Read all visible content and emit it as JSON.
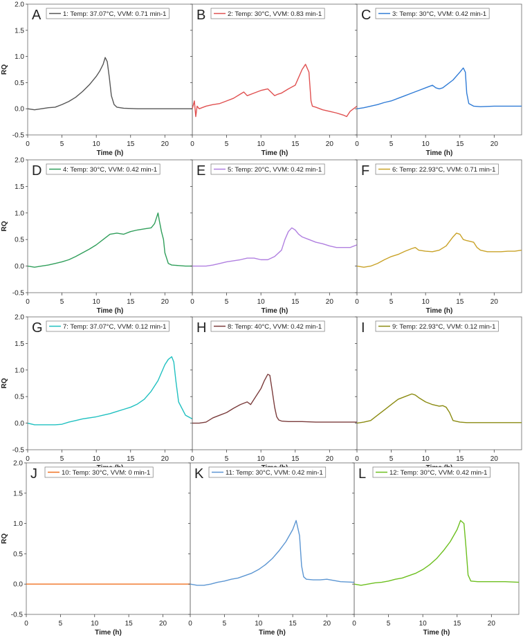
{
  "chart_data": [
    {
      "type": "line",
      "panel_letter": "A",
      "legend": "1: Temp: 37.07°C, VVM: 0.71 min-1",
      "color": "#555555",
      "xlabel": "Time (h)",
      "ylabel": "RQ",
      "xlim": [
        0,
        24
      ],
      "ylim": [
        -0.5,
        2.0
      ],
      "x": [
        0,
        1,
        2,
        3,
        4,
        5,
        6,
        7,
        8,
        9,
        10,
        10.5,
        11,
        11.3,
        11.6,
        11.9,
        12.2,
        12.6,
        13,
        14,
        16,
        18,
        20,
        22,
        24
      ],
      "y": [
        0,
        -0.02,
        0,
        0.02,
        0.03,
        0.08,
        0.14,
        0.22,
        0.33,
        0.46,
        0.62,
        0.72,
        0.85,
        0.98,
        0.9,
        0.6,
        0.25,
        0.08,
        0.03,
        0.01,
        0,
        0,
        0,
        0,
        0
      ]
    },
    {
      "type": "line",
      "panel_letter": "B",
      "legend": "2: Temp: 30°C, VVM: 0.83 min-1",
      "color": "#e05050",
      "xlabel": "Time (h)",
      "ylabel": "RQ",
      "xlim": [
        0,
        24
      ],
      "ylim": [
        -0.5,
        2.0
      ],
      "x": [
        0,
        0.3,
        0.5,
        0.7,
        1,
        2,
        3,
        4,
        5,
        6,
        7,
        7.5,
        8,
        9,
        10,
        11,
        12,
        12.5,
        13,
        14,
        15,
        16,
        16.5,
        17,
        17.3,
        17.5,
        18,
        19,
        20,
        21,
        22,
        22.5,
        23,
        24
      ],
      "y": [
        0,
        0.15,
        -0.15,
        0.05,
        0,
        0.05,
        0.08,
        0.1,
        0.15,
        0.2,
        0.28,
        0.32,
        0.25,
        0.3,
        0.35,
        0.38,
        0.25,
        0.28,
        0.3,
        0.38,
        0.45,
        0.75,
        0.85,
        0.7,
        0.15,
        0.05,
        0.03,
        -0.02,
        -0.05,
        -0.08,
        -0.12,
        -0.15,
        -0.05,
        0.05
      ]
    },
    {
      "type": "line",
      "panel_letter": "C",
      "legend": "3: Temp: 30°C, VVM: 0.42 min-1",
      "color": "#2f7bd6",
      "xlabel": "Time (h)",
      "ylabel": "RQ",
      "xlim": [
        0,
        24
      ],
      "ylim": [
        -0.5,
        2.0
      ],
      "x": [
        0,
        1,
        2,
        3,
        4,
        5,
        6,
        7,
        8,
        9,
        10,
        11,
        11.5,
        12,
        12.5,
        13,
        14,
        15,
        15.5,
        15.8,
        16,
        16.3,
        17,
        18,
        20,
        22,
        24
      ],
      "y": [
        0,
        0.02,
        0.05,
        0.08,
        0.12,
        0.15,
        0.2,
        0.25,
        0.3,
        0.35,
        0.4,
        0.45,
        0.4,
        0.38,
        0.4,
        0.45,
        0.55,
        0.7,
        0.78,
        0.7,
        0.3,
        0.1,
        0.05,
        0.04,
        0.05,
        0.05,
        0.05
      ]
    },
    {
      "type": "line",
      "panel_letter": "D",
      "legend": "4: Temp: 30°C, VVM: 0.42 min-1",
      "color": "#2f9e5a",
      "xlabel": "Time (h)",
      "ylabel": "RQ",
      "xlim": [
        0,
        24
      ],
      "ylim": [
        -0.5,
        2.0
      ],
      "x": [
        0,
        1,
        2,
        3,
        4,
        5,
        6,
        7,
        8,
        9,
        10,
        11,
        12,
        13,
        14,
        15,
        16,
        17,
        18,
        18.5,
        19,
        19.2,
        19.5,
        19.8,
        20,
        20.5,
        21,
        22,
        23,
        24
      ],
      "y": [
        0,
        -0.02,
        0,
        0.02,
        0.05,
        0.08,
        0.12,
        0.18,
        0.25,
        0.32,
        0.4,
        0.5,
        0.6,
        0.62,
        0.6,
        0.65,
        0.68,
        0.7,
        0.72,
        0.8,
        1.0,
        0.85,
        0.65,
        0.5,
        0.25,
        0.05,
        0.02,
        0.01,
        0,
        0
      ]
    },
    {
      "type": "line",
      "panel_letter": "E",
      "legend": "5: Temp: 20°C, VVM: 0.42 min-1",
      "color": "#b07fe0",
      "xlabel": "Time (h)",
      "ylabel": "RQ",
      "xlim": [
        0,
        24
      ],
      "ylim": [
        -0.5,
        2.0
      ],
      "x": [
        0,
        1,
        2,
        3,
        4,
        5,
        6,
        7,
        8,
        9,
        10,
        11,
        12,
        13,
        13.5,
        14,
        14.5,
        15,
        15.5,
        16,
        17,
        18,
        19,
        20,
        21,
        22,
        23,
        24
      ],
      "y": [
        0,
        0,
        0,
        0.02,
        0.05,
        0.08,
        0.1,
        0.12,
        0.15,
        0.15,
        0.12,
        0.12,
        0.18,
        0.3,
        0.5,
        0.65,
        0.72,
        0.68,
        0.6,
        0.55,
        0.5,
        0.45,
        0.42,
        0.38,
        0.35,
        0.35,
        0.35,
        0.4
      ]
    },
    {
      "type": "line",
      "panel_letter": "F",
      "legend": "6: Temp: 22.93°C, VVM: 0.71 min-1",
      "color": "#c9a227",
      "xlabel": "Time (h)",
      "ylabel": "RQ",
      "xlim": [
        0,
        24
      ],
      "ylim": [
        -0.5,
        2.0
      ],
      "x": [
        0,
        1,
        2,
        3,
        4,
        5,
        6,
        7,
        8,
        8.5,
        9,
        10,
        11,
        12,
        13,
        14,
        14.5,
        15,
        15.5,
        16,
        17,
        17.5,
        18,
        19,
        20,
        21,
        22,
        23,
        24
      ],
      "y": [
        0,
        -0.02,
        0,
        0.05,
        0.12,
        0.18,
        0.22,
        0.28,
        0.33,
        0.35,
        0.3,
        0.28,
        0.27,
        0.3,
        0.38,
        0.55,
        0.62,
        0.6,
        0.5,
        0.48,
        0.45,
        0.35,
        0.3,
        0.27,
        0.27,
        0.27,
        0.28,
        0.28,
        0.3
      ]
    },
    {
      "type": "line",
      "panel_letter": "G",
      "legend": "7: Temp: 37.07°C, VVM: 0.12 min-1",
      "color": "#1fc0c0",
      "xlabel": "Time (h)",
      "ylabel": "RQ",
      "xlim": [
        0,
        24
      ],
      "ylim": [
        -0.5,
        2.0
      ],
      "x": [
        0,
        1,
        2,
        3,
        4,
        5,
        6,
        7,
        8,
        9,
        10,
        11,
        12,
        13,
        14,
        15,
        16,
        17,
        18,
        19,
        19.5,
        20,
        20.5,
        21,
        21.3,
        21.6,
        22,
        23,
        24
      ],
      "y": [
        0,
        -0.03,
        -0.03,
        -0.03,
        -0.03,
        -0.02,
        0.02,
        0.05,
        0.08,
        0.1,
        0.12,
        0.15,
        0.18,
        0.22,
        0.26,
        0.3,
        0.36,
        0.45,
        0.6,
        0.8,
        0.95,
        1.1,
        1.2,
        1.25,
        1.15,
        0.8,
        0.4,
        0.15,
        0.08
      ]
    },
    {
      "type": "line",
      "panel_letter": "H",
      "legend": "8: Temp: 40°C, VVM: 0.42 min-1",
      "color": "#7a3b3b",
      "xlabel": "Time (h)",
      "ylabel": "RQ",
      "xlim": [
        0,
        24
      ],
      "ylim": [
        -0.5,
        2.0
      ],
      "x": [
        0,
        1,
        2,
        3,
        4,
        5,
        6,
        7,
        8,
        8.5,
        9,
        10,
        10.5,
        11,
        11.3,
        11.6,
        12,
        12.3,
        12.6,
        13,
        14,
        16,
        18,
        20,
        22,
        24
      ],
      "y": [
        0,
        0,
        0.02,
        0.1,
        0.15,
        0.2,
        0.28,
        0.35,
        0.4,
        0.35,
        0.45,
        0.65,
        0.8,
        0.92,
        0.9,
        0.65,
        0.3,
        0.12,
        0.06,
        0.04,
        0.03,
        0.03,
        0.02,
        0.02,
        0.02,
        0.02
      ]
    },
    {
      "type": "line",
      "panel_letter": "I",
      "legend": "9: Temp: 22.93°C, VVM: 0.12 min-1",
      "color": "#8a8a10",
      "xlabel": "Time (h)",
      "ylabel": "RQ",
      "xlim": [
        0,
        24
      ],
      "ylim": [
        -0.5,
        2.0
      ],
      "x": [
        0,
        1,
        2,
        3,
        4,
        5,
        6,
        7,
        8,
        8.5,
        9,
        10,
        11,
        12,
        12.5,
        13,
        13.5,
        14,
        15,
        16,
        18,
        20,
        22,
        24
      ],
      "y": [
        0,
        0.02,
        0.05,
        0.15,
        0.25,
        0.35,
        0.45,
        0.5,
        0.55,
        0.53,
        0.48,
        0.4,
        0.35,
        0.32,
        0.33,
        0.3,
        0.2,
        0.05,
        0.02,
        0.01,
        0.01,
        0.01,
        0.01,
        0.01
      ]
    },
    {
      "type": "line",
      "panel_letter": "J",
      "legend": "10: Temp: 30°C, VVM: 0 min-1",
      "color": "#f07020",
      "xlabel": "Time (h)",
      "ylabel": "RQ",
      "xlim": [
        0,
        24
      ],
      "ylim": [
        -0.5,
        2.0
      ],
      "x": [
        0,
        24
      ],
      "y": [
        0,
        0
      ]
    },
    {
      "type": "line",
      "panel_letter": "K",
      "legend": "11: Temp: 30°C, VVM: 0.42 min-1",
      "color": "#5b95d2",
      "xlabel": "Time (h)",
      "ylabel": "RQ",
      "xlim": [
        0,
        24
      ],
      "ylim": [
        -0.5,
        2.0
      ],
      "x": [
        0,
        1,
        2,
        3,
        4,
        5,
        6,
        7,
        8,
        9,
        10,
        11,
        12,
        13,
        14,
        15,
        15.5,
        16,
        16.3,
        16.6,
        17,
        18,
        19,
        20,
        21,
        22,
        24
      ],
      "y": [
        0,
        -0.02,
        -0.02,
        0,
        0.03,
        0.05,
        0.08,
        0.1,
        0.14,
        0.18,
        0.24,
        0.32,
        0.42,
        0.55,
        0.7,
        0.9,
        1.05,
        0.8,
        0.3,
        0.12,
        0.08,
        0.07,
        0.07,
        0.08,
        0.06,
        0.04,
        0.03
      ]
    },
    {
      "type": "line",
      "panel_letter": "L",
      "legend": "12: Temp: 30°C, VVM: 0.42 min-1",
      "color": "#6cbf1e",
      "xlabel": "Time (h)",
      "ylabel": "RQ",
      "xlim": [
        0,
        24
      ],
      "ylim": [
        -0.5,
        2.0
      ],
      "x": [
        0,
        1,
        2,
        3,
        4,
        5,
        6,
        7,
        8,
        9,
        10,
        11,
        12,
        13,
        14,
        15,
        15.5,
        16,
        16.3,
        16.6,
        17,
        18,
        19,
        20,
        21,
        22,
        24
      ],
      "y": [
        0,
        -0.02,
        0,
        0.02,
        0.03,
        0.05,
        0.08,
        0.1,
        0.14,
        0.18,
        0.24,
        0.32,
        0.42,
        0.55,
        0.7,
        0.9,
        1.05,
        1.0,
        0.6,
        0.15,
        0.05,
        0.04,
        0.04,
        0.04,
        0.04,
        0.04,
        0.03
      ]
    }
  ]
}
